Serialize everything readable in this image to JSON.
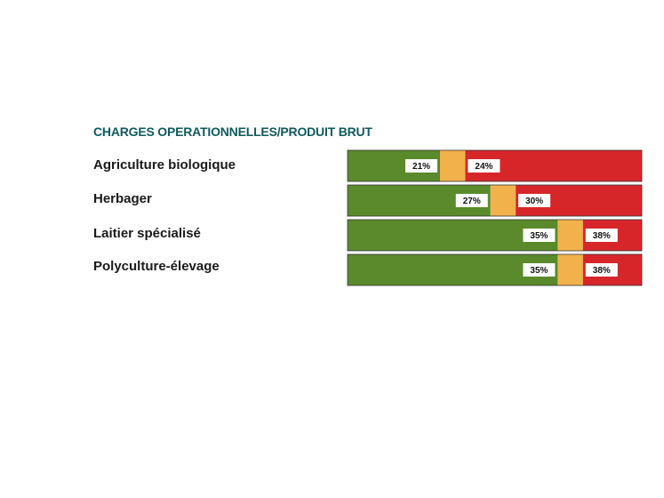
{
  "chart_data": {
    "type": "bar",
    "title": "CHARGES OPERATIONNELLES/PRODUIT BRUT",
    "categories": [
      "Agriculture biologique",
      "Herbager",
      "Laitier spécialisé",
      "Polyculture-élevage"
    ],
    "series": [
      {
        "values": [
          21,
          27,
          35,
          35
        ]
      },
      {
        "values": [
          24,
          30,
          38,
          38
        ]
      }
    ],
    "lower_labels": [
      "21%",
      "27%",
      "35%",
      "35%"
    ],
    "upper_labels": [
      "24%",
      "30%",
      "38%",
      "38%"
    ],
    "xlim": [
      10,
      45
    ],
    "colors": {
      "good": "#5a8a2c",
      "threshold": "#f2b24b",
      "bad": "#d7262a",
      "label_bg": "#ffffff"
    }
  }
}
